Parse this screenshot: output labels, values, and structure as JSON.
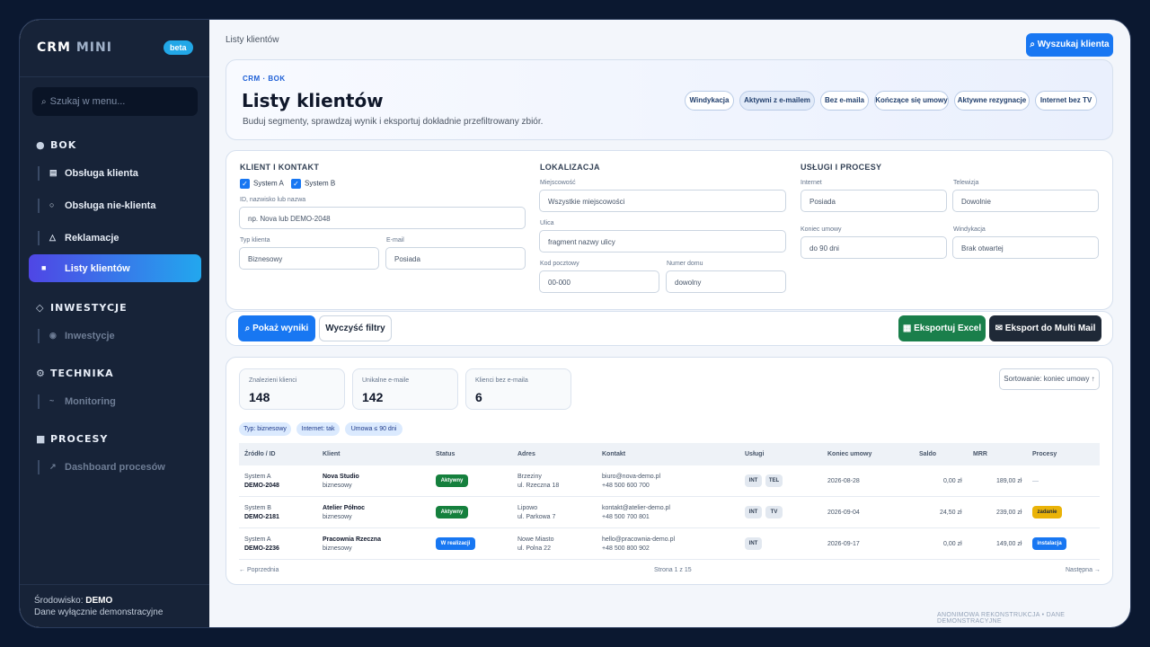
{
  "sidebar": {
    "logo_a": "CRM",
    "logo_b": "MINI",
    "badge": "beta",
    "search_placeholder": "Szukaj w menu...",
    "sections": {
      "bok": "BOK",
      "inwestycje": "INWESTYCJE",
      "technika": "TECHNIKA",
      "procesy": "PROCESY"
    },
    "items": {
      "obsluga_klienta": "Obsługa klienta",
      "obsluga_nie_klienta": "Obsługa nie-klienta",
      "reklamacje": "Reklamacje",
      "listy_klientow": "Listy klientów",
      "inwestycje": "Inwestycje",
      "monitoring": "Monitoring",
      "dashboard": "Dashboard procesów"
    },
    "env_label": "Środowisko:",
    "env_value": "DEMO",
    "env_note": "Dane wyłącznie demonstracyjne"
  },
  "header": {
    "breadcrumb": "Listy klientów",
    "search_button": "⌕ Wyszukaj klienta"
  },
  "hero": {
    "kicker": "CRM · BOK",
    "title": "Listy klientów",
    "subtitle": "Buduj segmenty, sprawdzaj wynik i eksportuj dokładnie przefiltrowany zbiór.",
    "presets": [
      "Windykacja",
      "Aktywni z e-mailem",
      "Bez e-maila",
      "Kończące się umowy",
      "Aktywne rezygnacje",
      "Internet bez TV"
    ]
  },
  "filters": {
    "client_heading": "KLIENT I KONTAKT",
    "system_a": "System A",
    "system_b": "System B",
    "id_label": "ID, nazwisko lub nazwa",
    "id_placeholder": "np. Nova lub DEMO-2048",
    "type_label": "Typ klienta",
    "type_value": "Biznesowy",
    "email_label": "E-mail",
    "email_value": "Posiada",
    "loc_heading": "LOKALIZACJA",
    "city_label": "Miejscowość",
    "city_value": "Wszystkie miejscowości",
    "street_label": "Ulica",
    "street_placeholder": "fragment nazwy ulicy",
    "zip_label": "Kod pocztowy",
    "zip_placeholder": "00-000",
    "house_label": "Numer domu",
    "house_placeholder": "dowolny",
    "svc_heading": "USŁUGI I PROCESY",
    "internet_label": "Internet",
    "internet_value": "Posiada",
    "tv_label": "Telewizja",
    "tv_value": "Dowolnie",
    "contract_label": "Koniec umowy",
    "contract_value": "do 90 dni",
    "debt_label": "Windykacja",
    "debt_value": "Brak otwartej"
  },
  "actions": {
    "show": "⌕ Pokaż wyniki",
    "clear": "Wyczyść filtry",
    "excel": "▦ Eksportuj Excel",
    "mail": "✉ Eksport do Multi Mail"
  },
  "results": {
    "stats": [
      {
        "label": "Znalezieni klienci",
        "value": "148"
      },
      {
        "label": "Unikalne e-maile",
        "value": "142"
      },
      {
        "label": "Klienci bez e-maila",
        "value": "6"
      }
    ],
    "sort": "Sortowanie: koniec umowy ↑",
    "tags": [
      "Typ: biznesowy",
      "Internet: tak",
      "Umowa ≤ 90 dni"
    ],
    "columns": [
      "Źródło / ID",
      "Klient",
      "Status",
      "Adres",
      "Kontakt",
      "Usługi",
      "Koniec umowy",
      "Saldo",
      "MRR",
      "Procesy"
    ],
    "rows": [
      {
        "source": "System A",
        "id": "DEMO-2048",
        "name": "Nova Studio",
        "type": "biznesowy",
        "status": "Aktywny",
        "city": "Brzeziny",
        "street": "ul. Rzeczna 18",
        "email": "biuro@nova-demo.pl",
        "phone": "+48 500 600 700",
        "services": [
          "INT",
          "TEL"
        ],
        "end": "2026-08-28",
        "saldo": "0,00 zł",
        "mrr": "189,00 zł",
        "process": "—"
      },
      {
        "source": "System B",
        "id": "DEMO-2181",
        "name": "Atelier Północ",
        "type": "biznesowy",
        "status": "Aktywny",
        "city": "Lipowo",
        "street": "ul. Parkowa 7",
        "email": "kontakt@atelier-demo.pl",
        "phone": "+48 500 700 801",
        "services": [
          "INT",
          "TV"
        ],
        "end": "2026-09-04",
        "saldo": "24,50 zł",
        "mrr": "239,00 zł",
        "process": "zadanie"
      },
      {
        "source": "System A",
        "id": "DEMO-2236",
        "name": "Pracownia Rzeczna",
        "type": "biznesowy",
        "status": "W realizacji",
        "city": "Nowe Miasto",
        "street": "ul. Polna 22",
        "email": "hello@pracownia-demo.pl",
        "phone": "+48 500 800 902",
        "services": [
          "INT"
        ],
        "end": "2026-09-17",
        "saldo": "0,00 zł",
        "mrr": "149,00 zł",
        "process": "instalacja"
      }
    ],
    "prev": "← Poprzednia",
    "page": "Strona 1 z 15",
    "next": "Następna →"
  },
  "footer": "ANONIMOWA REKONSTRUKCJA • DANE DEMONSTRACYJNE",
  "colors": {
    "accent": "#1877f2",
    "excel": "#1a7f4b",
    "mail": "#1f2937",
    "active_status": "#15803d",
    "progress_status": "#1877f2",
    "task": "#eab308"
  }
}
